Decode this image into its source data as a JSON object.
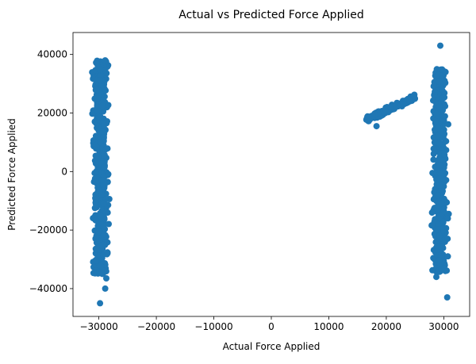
{
  "chart_data": {
    "type": "scatter",
    "title": "Actual vs Predicted Force Applied",
    "xlabel": "Actual Force Applied",
    "ylabel": "Predicted Force Applied",
    "xlim": [
      -34500,
      34500
    ],
    "ylim": [
      -49500,
      47500
    ],
    "xticks": [
      -30000,
      -20000,
      -10000,
      0,
      10000,
      20000,
      30000
    ],
    "xtick_labels": [
      "−30000",
      "−20000",
      "−10000",
      "0",
      "10000",
      "20000",
      "30000"
    ],
    "yticks": [
      -40000,
      -20000,
      0,
      20000,
      40000
    ],
    "ytick_labels": [
      "−40000",
      "−20000",
      "0",
      "20000",
      "40000"
    ],
    "grid": false,
    "marker_color": "#1f77b4",
    "clusters": [
      {
        "kind": "vertical-band",
        "x_center": -29700,
        "x_spread": 1500,
        "y_range": [
          -35000,
          38000
        ]
      },
      {
        "kind": "line-segment",
        "x_range": [
          16500,
          25000
        ],
        "y_at_x_start": 17500,
        "y_at_x_end": 25500
      },
      {
        "kind": "vertical-band",
        "x_center": 29300,
        "x_spread": 1400,
        "y_range": [
          -34500,
          35000
        ]
      }
    ],
    "outliers": [
      {
        "x": -29800,
        "y": -45000
      },
      {
        "x": -28900,
        "y": -40000
      },
      {
        "x": -28700,
        "y": -36500
      },
      {
        "x": -28900,
        "y": 38000
      },
      {
        "x": 29400,
        "y": 43000
      },
      {
        "x": 28700,
        "y": -36000
      },
      {
        "x": 30600,
        "y": -43000
      },
      {
        "x": 30300,
        "y": 34000
      },
      {
        "x": 18300,
        "y": 15500
      },
      {
        "x": 30700,
        "y": -29000
      },
      {
        "x": 30700,
        "y": -16000
      }
    ]
  }
}
